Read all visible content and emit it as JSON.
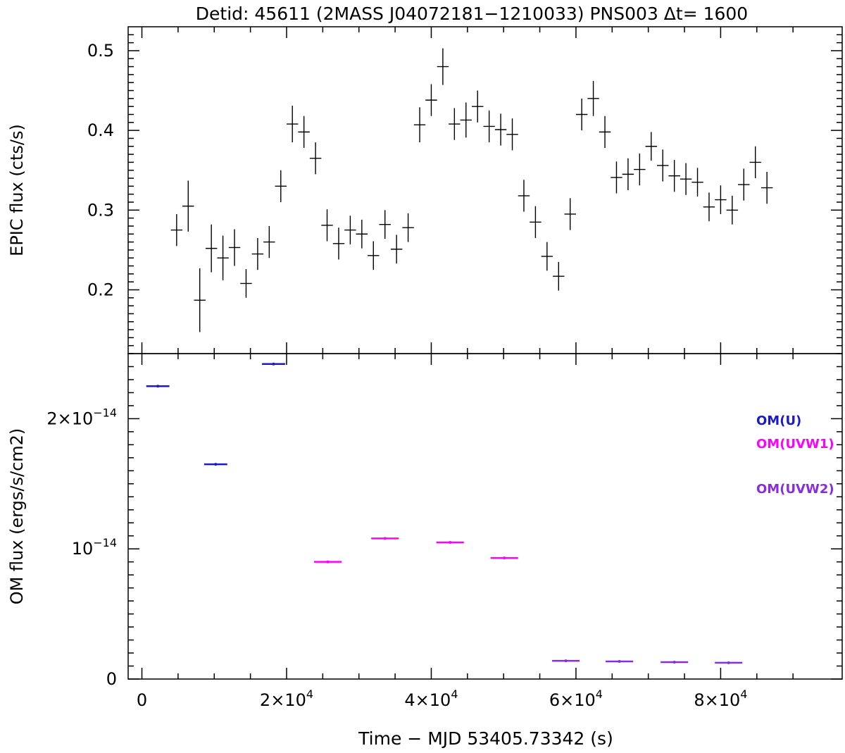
{
  "chart_data": [
    {
      "type": "scatter",
      "panel": "top",
      "title": "Detid:  45611 (2MASS J04072181−1210033)    PNS003    Δt= 1600",
      "xlabel": "Time − MJD 53405.73342 (s)",
      "ylabel": "EPIC flux (cts/s)",
      "xlim": [
        -1900,
        96800
      ],
      "ylim": [
        0.12,
        0.53
      ],
      "yticks": [
        {
          "v": 0.2,
          "label": "0.2"
        },
        {
          "v": 0.3,
          "label": "0.3"
        },
        {
          "v": 0.4,
          "label": "0.4"
        },
        {
          "v": 0.5,
          "label": "0.5"
        }
      ],
      "bin_halfwidth": 800,
      "x": [
        4800,
        6400,
        8000,
        9600,
        11200,
        12800,
        14400,
        16000,
        17600,
        19200,
        20800,
        22400,
        24000,
        25600,
        27200,
        28800,
        30400,
        32000,
        33600,
        35200,
        36800,
        38400,
        40000,
        41600,
        43200,
        44800,
        46400,
        48000,
        49600,
        51200,
        52800,
        54400,
        56000,
        57600,
        59200,
        60800,
        62400,
        64000,
        65600,
        67200,
        68800,
        70400,
        72000,
        73600,
        75200,
        76800,
        78400,
        80000,
        81600,
        83200,
        84800,
        86400
      ],
      "values": [
        0.275,
        0.305,
        0.187,
        0.252,
        0.24,
        0.253,
        0.208,
        0.245,
        0.26,
        0.33,
        0.408,
        0.398,
        0.365,
        0.281,
        0.258,
        0.275,
        0.27,
        0.243,
        0.282,
        0.251,
        0.278,
        0.407,
        0.438,
        0.48,
        0.408,
        0.413,
        0.43,
        0.405,
        0.401,
        0.395,
        0.318,
        0.285,
        0.242,
        0.217,
        0.295,
        0.42,
        0.44,
        0.398,
        0.341,
        0.345,
        0.351,
        0.38,
        0.356,
        0.343,
        0.339,
        0.335,
        0.304,
        0.313,
        0.3,
        0.332,
        0.36,
        0.328
      ],
      "errors": [
        0.02,
        0.032,
        0.04,
        0.03,
        0.028,
        0.023,
        0.018,
        0.02,
        0.02,
        0.02,
        0.023,
        0.02,
        0.02,
        0.02,
        0.02,
        0.018,
        0.018,
        0.018,
        0.018,
        0.018,
        0.018,
        0.022,
        0.02,
        0.023,
        0.02,
        0.022,
        0.02,
        0.02,
        0.02,
        0.02,
        0.02,
        0.02,
        0.018,
        0.018,
        0.02,
        0.02,
        0.022,
        0.02,
        0.02,
        0.02,
        0.02,
        0.018,
        0.02,
        0.02,
        0.02,
        0.018,
        0.018,
        0.018,
        0.018,
        0.02,
        0.02,
        0.02
      ]
    },
    {
      "type": "scatter",
      "panel": "bottom",
      "xlabel": "Time − MJD 53405.73342 (s)",
      "ylabel": "OM flux (ergs/s/cm2)",
      "xlim": [
        -1900,
        96800
      ],
      "ylim": [
        0,
        2.5e-14
      ],
      "xticks": [
        {
          "v": 0,
          "label": "0"
        },
        {
          "v": 20000,
          "label": "2×10",
          "exp": "4"
        },
        {
          "v": 40000,
          "label": "4×10",
          "exp": "4"
        },
        {
          "v": 60000,
          "label": "6×10",
          "exp": "4"
        },
        {
          "v": 80000,
          "label": "8×10",
          "exp": "4"
        }
      ],
      "yticks": [
        {
          "v": 0,
          "label": "0",
          "exp": ""
        },
        {
          "v": 1e-14,
          "label": "10",
          "exp": "−14"
        },
        {
          "v": 2e-14,
          "label": "2×10",
          "exp": "−14"
        }
      ],
      "series": [
        {
          "name": "OM(U)",
          "color": "#1a1acc",
          "points": [
            {
              "x": 2200,
              "hw": 1600,
              "y": 2.25e-14
            },
            {
              "x": 10200,
              "hw": 1600,
              "y": 1.65e-14
            },
            {
              "x": 18200,
              "hw": 1600,
              "y": 2.42e-14
            }
          ]
        },
        {
          "name": "OM(UVW1)",
          "color": "#ff00ff",
          "points": [
            {
              "x": 25700,
              "hw": 1900,
              "y": 9e-15
            },
            {
              "x": 33600,
              "hw": 1900,
              "y": 1.08e-14
            },
            {
              "x": 42600,
              "hw": 1900,
              "y": 1.05e-14
            },
            {
              "x": 50100,
              "hw": 1900,
              "y": 9.3e-15
            }
          ]
        },
        {
          "name": "OM(UVW2)",
          "color": "#8a2be2",
          "points": [
            {
              "x": 58600,
              "hw": 1900,
              "y": 1.4e-15
            },
            {
              "x": 66000,
              "hw": 1900,
              "y": 1.35e-15
            },
            {
              "x": 73600,
              "hw": 1900,
              "y": 1.3e-15
            },
            {
              "x": 81100,
              "hw": 1900,
              "y": 1.25e-15
            }
          ]
        }
      ]
    }
  ]
}
